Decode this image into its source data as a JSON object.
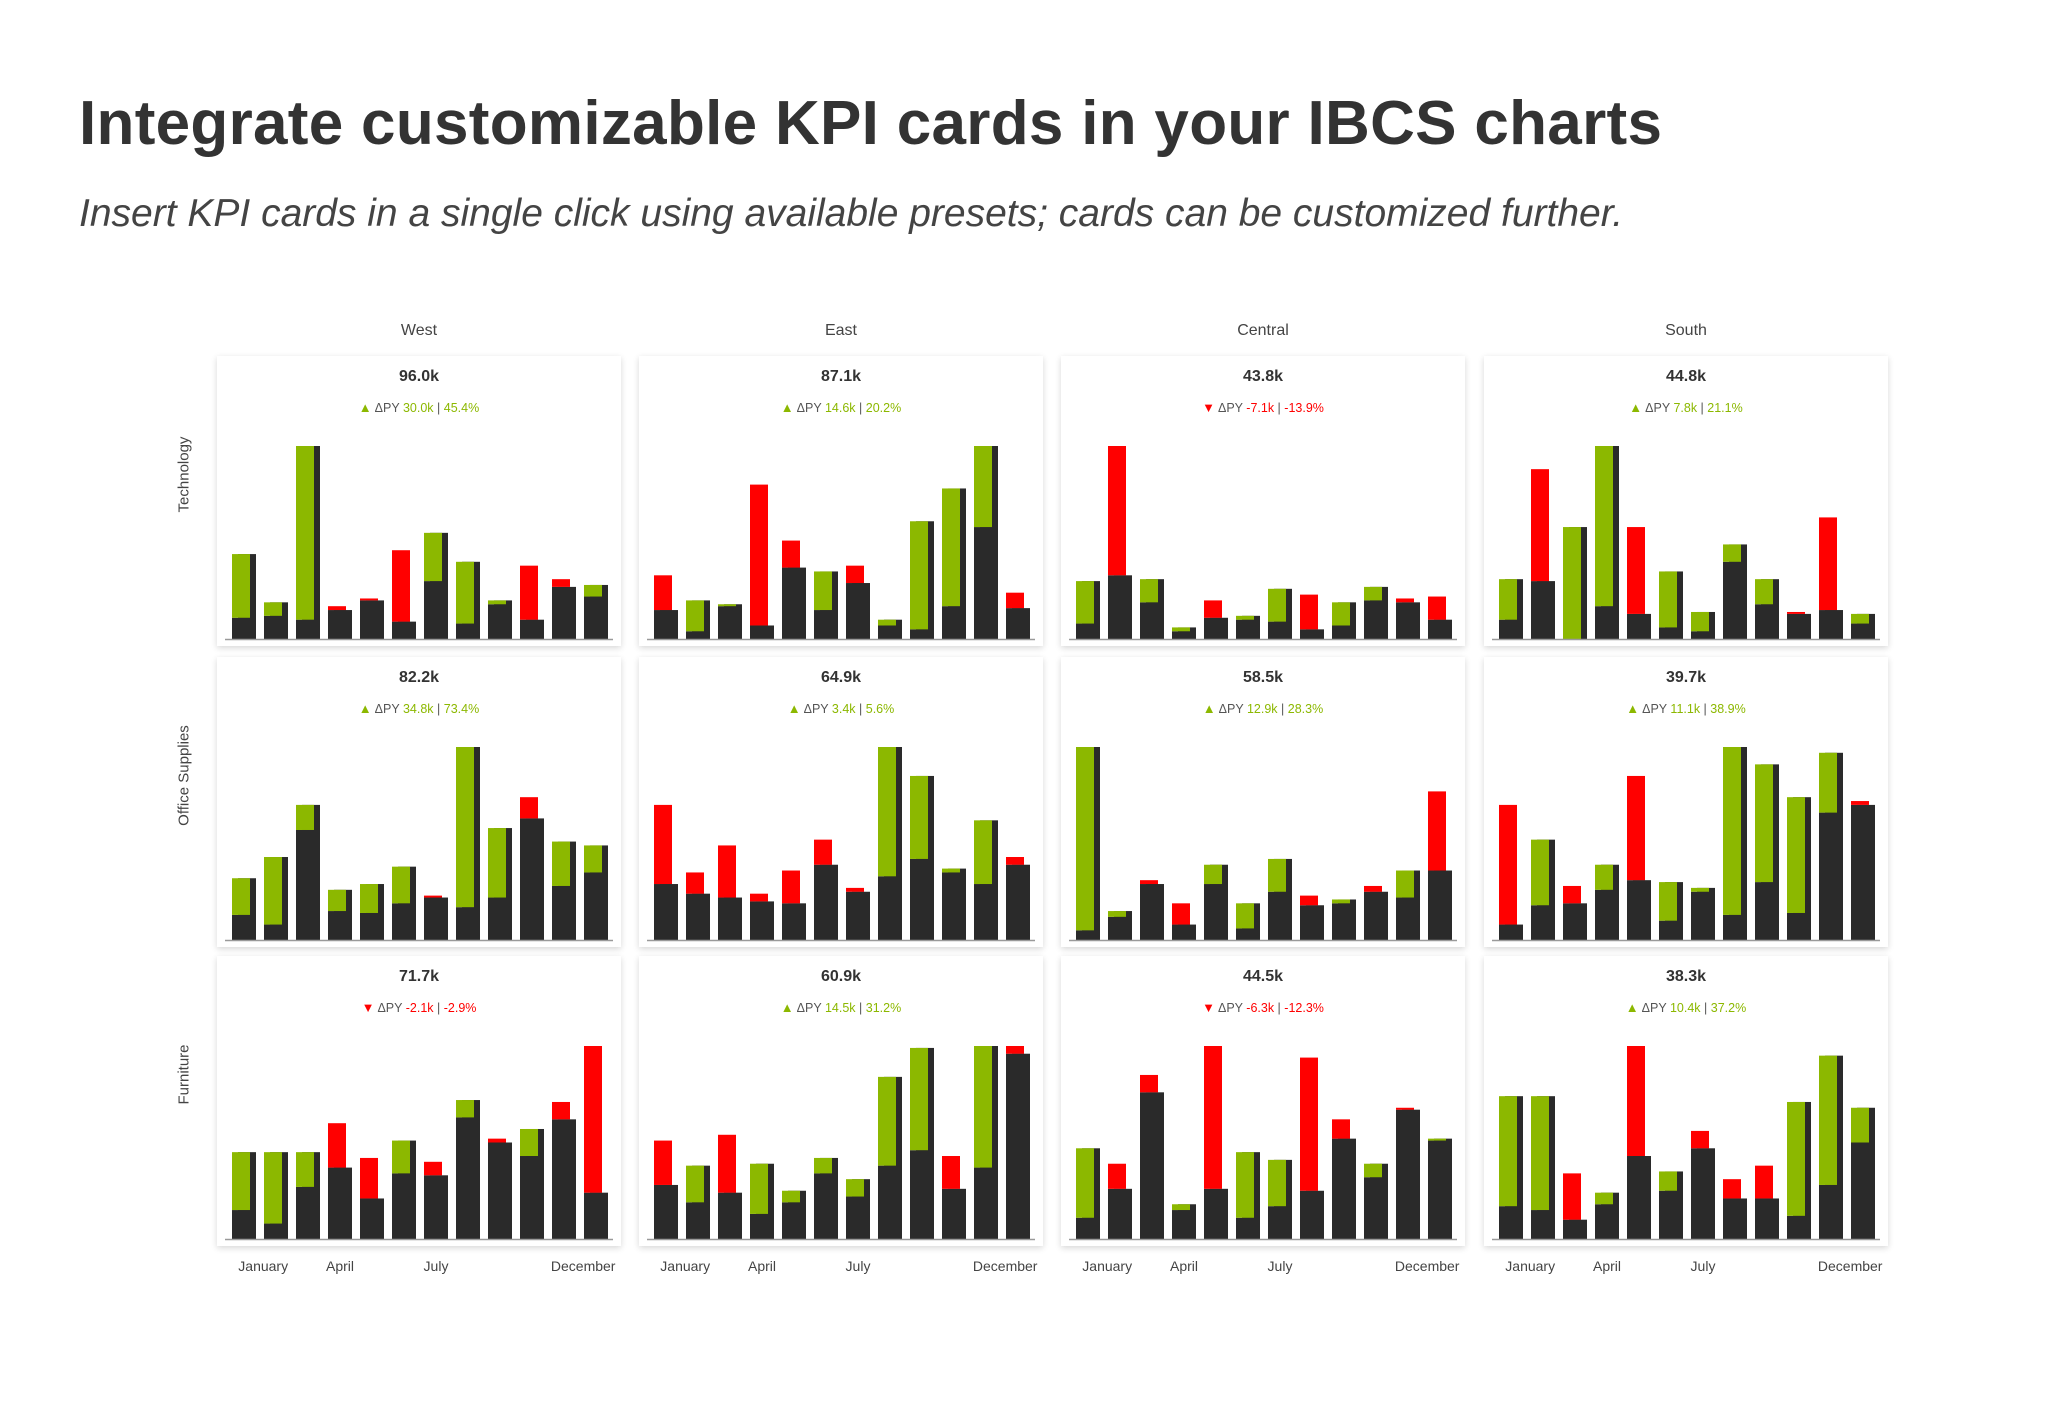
{
  "header": {
    "title": "Integrate customizable KPI cards in your IBCS charts",
    "subtitle": "Insert KPI cards in a single click using available presets; cards can be customized further."
  },
  "colors": {
    "positive": "#8cb800",
    "negative": "#ff0000",
    "bar": "#2a2a2a",
    "axis": "#9a9a9a"
  },
  "chart_data": {
    "type": "bar",
    "subtype": "small-multiples variance columns (AC vs PY), each panel scaled to its own maximum",
    "columns": [
      "West",
      "East",
      "Central",
      "South"
    ],
    "rows": [
      "Technology",
      "Office Supplies",
      "Furniture"
    ],
    "x_tick_labels": [
      "January",
      "April",
      "July",
      "December"
    ],
    "months": 12,
    "grid": false,
    "legend": "none",
    "panels": [
      [
        {
          "value": "96.0k",
          "delta_label": "ΔPY",
          "delta": "30.0k",
          "pct": "45.4%",
          "trend": "up",
          "ac": [
            44,
            19,
            100,
            15,
            20,
            9,
            55,
            40,
            20,
            10,
            27,
            28
          ],
          "py": [
            11,
            12,
            10,
            17,
            21,
            46,
            30,
            8,
            18,
            38,
            31,
            22
          ]
        },
        {
          "value": "87.1k",
          "delta_label": "ΔPY",
          "delta": "14.6k",
          "pct": "20.2%",
          "trend": "up",
          "ac": [
            15,
            20,
            18,
            7,
            37,
            35,
            29,
            10,
            61,
            78,
            100,
            16
          ],
          "py": [
            33,
            4,
            17,
            80,
            51,
            15,
            38,
            7,
            5,
            17,
            58,
            24
          ]
        },
        {
          "value": "43.8k",
          "delta_label": "ΔPY",
          "delta": "-7.1k",
          "pct": "-13.9%",
          "trend": "down",
          "ac": [
            30,
            33,
            31,
            6,
            11,
            12,
            26,
            5,
            19,
            27,
            19,
            10
          ],
          "py": [
            8,
            100,
            19,
            4,
            20,
            10,
            9,
            23,
            7,
            20,
            21,
            22
          ]
        },
        {
          "value": "44.8k",
          "delta_label": "ΔPY",
          "delta": "7.8k",
          "pct": "21.1%",
          "trend": "up",
          "ac": [
            31,
            30,
            58,
            100,
            13,
            35,
            14,
            49,
            31,
            13,
            15,
            13
          ],
          "py": [
            10,
            88,
            0,
            17,
            58,
            6,
            4,
            40,
            18,
            14,
            63,
            8
          ]
        }
      ],
      [
        {
          "value": "82.2k",
          "delta_label": "ΔPY",
          "delta": "34.8k",
          "pct": "73.4%",
          "trend": "up",
          "ac": [
            32,
            43,
            70,
            26,
            29,
            38,
            22,
            100,
            58,
            63,
            51,
            49
          ],
          "py": [
            13,
            8,
            57,
            15,
            14,
            19,
            23,
            17,
            22,
            74,
            28,
            35
          ]
        },
        {
          "value": "64.9k",
          "delta_label": "ΔPY",
          "delta": "3.4k",
          "pct": "5.6%",
          "trend": "up",
          "ac": [
            29,
            24,
            22,
            20,
            19,
            39,
            25,
            100,
            85,
            37,
            62,
            39
          ],
          "py": [
            70,
            35,
            49,
            24,
            36,
            52,
            27,
            33,
            42,
            35,
            29,
            43
          ]
        },
        {
          "value": "58.5k",
          "delta_label": "ΔPY",
          "delta": "12.9k",
          "pct": "28.3%",
          "trend": "up",
          "ac": [
            100,
            15,
            29,
            8,
            39,
            19,
            42,
            18,
            21,
            25,
            36,
            36
          ],
          "py": [
            5,
            12,
            31,
            19,
            29,
            6,
            25,
            23,
            19,
            28,
            22,
            77
          ]
        },
        {
          "value": "39.7k",
          "delta_label": "ΔPY",
          "delta": "11.1k",
          "pct": "38.9%",
          "trend": "up",
          "ac": [
            8,
            52,
            19,
            39,
            31,
            30,
            27,
            100,
            91,
            74,
            97,
            70
          ],
          "py": [
            70,
            18,
            28,
            26,
            85,
            10,
            25,
            13,
            30,
            14,
            66,
            72
          ]
        }
      ],
      [
        {
          "value": "71.7k",
          "delta_label": "ΔPY",
          "delta": "-2.1k",
          "pct": "-2.9%",
          "trend": "down",
          "ac": [
            45,
            45,
            45,
            37,
            21,
            51,
            33,
            72,
            50,
            57,
            62,
            24
          ],
          "py": [
            15,
            8,
            27,
            60,
            42,
            34,
            40,
            63,
            52,
            43,
            71,
            100
          ]
        },
        {
          "value": "60.9k",
          "delta_label": "ΔPY",
          "delta": "14.5k",
          "pct": "31.2%",
          "trend": "up",
          "ac": [
            28,
            38,
            24,
            39,
            25,
            42,
            31,
            84,
            99,
            26,
            100,
            96
          ],
          "py": [
            51,
            19,
            54,
            13,
            19,
            34,
            22,
            38,
            46,
            43,
            37,
            100
          ]
        },
        {
          "value": "44.5k",
          "delta_label": "ΔPY",
          "delta": "-6.3k",
          "pct": "-12.3%",
          "trend": "down",
          "ac": [
            47,
            26,
            76,
            18,
            26,
            45,
            41,
            25,
            52,
            39,
            67,
            52
          ],
          "py": [
            11,
            39,
            85,
            15,
            100,
            11,
            17,
            94,
            62,
            32,
            68,
            51
          ]
        },
        {
          "value": "38.3k",
          "delta_label": "ΔPY",
          "delta": "10.4k",
          "pct": "37.2%",
          "trend": "up",
          "ac": [
            74,
            74,
            10,
            24,
            43,
            35,
            47,
            21,
            21,
            71,
            95,
            68
          ],
          "py": [
            17,
            15,
            34,
            18,
            100,
            25,
            56,
            31,
            38,
            12,
            28,
            50
          ]
        }
      ]
    ]
  }
}
